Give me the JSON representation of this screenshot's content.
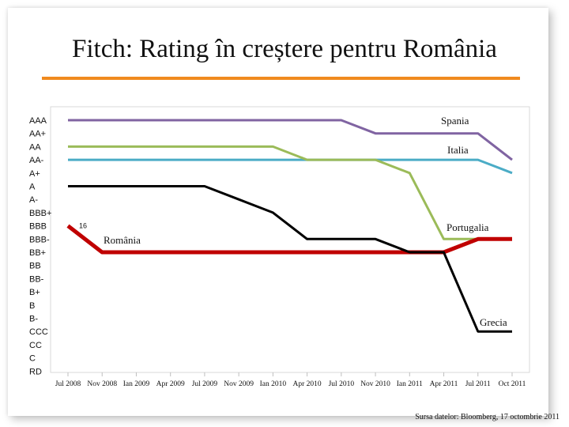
{
  "slide": {
    "title": "Fitch: Rating în creștere pentru România",
    "source": "Sursa datelor: Bloomberg, 17 octombrie 2011"
  },
  "chart_data": {
    "type": "line",
    "title": "Fitch: Rating în creștere pentru România",
    "x": [
      "Jul 2008",
      "Nov 2008",
      "Ian 2009",
      "Apr 2009",
      "Jul 2009",
      "Nov 2009",
      "Ian 2010",
      "Apr 2010",
      "Jul 2010",
      "Nov 2010",
      "Ian 2011",
      "Apr 2011",
      "Jul 2011",
      "Oct 2011"
    ],
    "y_categories": [
      "AAA",
      "AA+",
      "AA",
      "AA-",
      "A+",
      "A",
      "A-",
      "BBB+",
      "BBB",
      "BBB-",
      "BB+",
      "BB",
      "BB-",
      "B+",
      "B",
      "B-",
      "CCC",
      "CC",
      "C",
      "RD"
    ],
    "y_axis_order": "top-to-bottom",
    "grid": false,
    "legend": "inline labels",
    "series": [
      {
        "name": "Spania",
        "color": "#8064a2",
        "values": [
          "AAA",
          "AAA",
          "AAA",
          "AAA",
          "AAA",
          "AAA",
          "AAA",
          "AAA",
          "AAA",
          "AA+",
          "AA+",
          "AA+",
          "AA+",
          "AA-"
        ]
      },
      {
        "name": "Italia",
        "color": "#4bacc6",
        "values": [
          "AA-",
          "AA-",
          "AA-",
          "AA-",
          "AA-",
          "AA-",
          "AA-",
          "AA-",
          "AA-",
          "AA-",
          "AA-",
          "AA-",
          "AA-",
          "A+"
        ]
      },
      {
        "name": "Portugalia",
        "color": "#9bbb59",
        "values": [
          "AA",
          "AA",
          "AA",
          "AA",
          "AA",
          "AA",
          "AA",
          "AA-",
          "AA-",
          "AA-",
          "A+",
          "BBB-",
          "BBB-",
          "BBB-"
        ]
      },
      {
        "name": "România",
        "color": "#c00000",
        "values": [
          "BBB",
          "BB+",
          "BB+",
          "BB+",
          "BB+",
          "BB+",
          "BB+",
          "BB+",
          "BB+",
          "BB+",
          "BB+",
          "BB+",
          "BBB-",
          "BBB-"
        ]
      },
      {
        "name": "Grecia",
        "color": "#000000",
        "values": [
          "A",
          "A",
          "A",
          "A",
          "A",
          "A-",
          "BBB+",
          "BBB-",
          "BBB-",
          "BBB-",
          "BB+",
          "BB+",
          "CCC",
          "CCC"
        ]
      }
    ],
    "annotations": [
      {
        "text": "16",
        "x": "Jul 2008",
        "y": "BBB"
      }
    ]
  }
}
